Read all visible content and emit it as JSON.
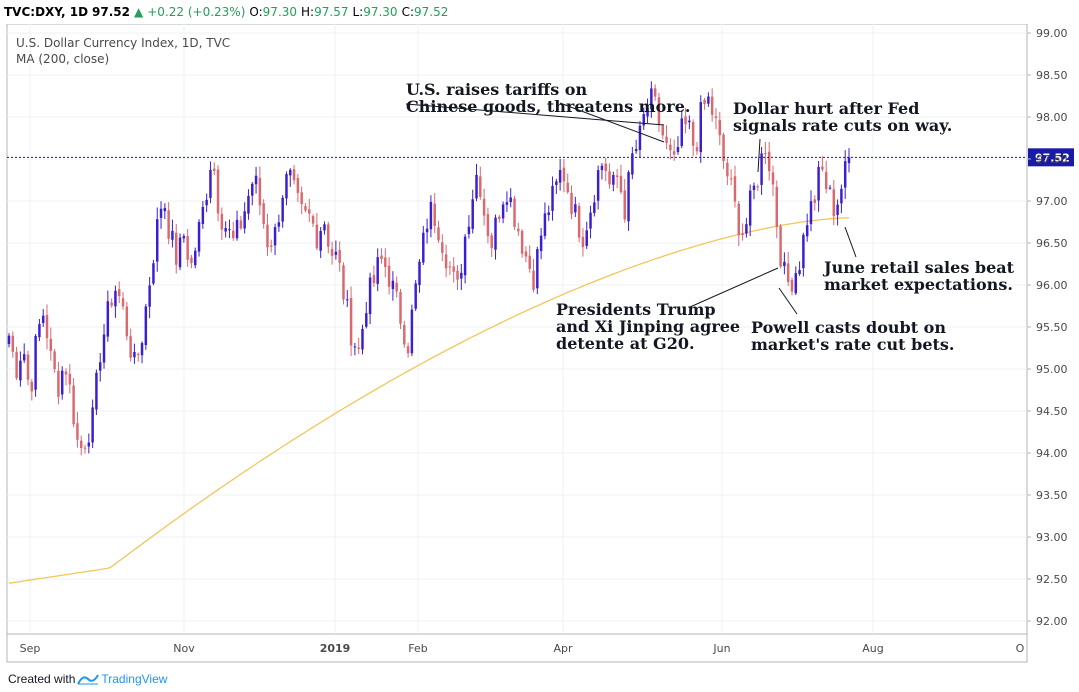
{
  "header": {
    "symbol": "TVC:DXY, 1D",
    "last": "97.52",
    "change": "+0.22 (+0.23%)",
    "open_label": "O:",
    "open": "97.30",
    "high_label": "H:",
    "high": "97.57",
    "low_label": "L:",
    "low": "97.30",
    "close_label": "C:",
    "close": "97.52"
  },
  "footer": {
    "created_with": "Created with",
    "brand": "TradingView"
  },
  "chart_data": {
    "type": "candlestick",
    "title": "U.S. Dollar Currency Index, 1D, TVC",
    "indicator": "MA (200, close)",
    "x_ticks": [
      "Sep",
      "Nov",
      "2019",
      "Feb",
      "Apr",
      "Jun",
      "Aug",
      "O"
    ],
    "y_ticks": [
      "99.00",
      "98.50",
      "98.00",
      "97.50",
      "97.00",
      "96.50",
      "96.00",
      "95.50",
      "95.00",
      "94.50",
      "94.00",
      "93.50",
      "93.00",
      "92.50",
      "92.00"
    ],
    "ylim": [
      91.9,
      99.1
    ],
    "last_price_label": "97.52",
    "last_price": 97.52,
    "colors": {
      "up": "#3a1fd1",
      "down": "#d9696f",
      "ma": "#f2c65a",
      "price_line": "#1a1aa8",
      "price_label_bg": "#1a1aa8"
    },
    "close_path": [
      95.4,
      95.0,
      95.3,
      94.7,
      95.4,
      95.7,
      95.1,
      94.8,
      95.1,
      94.6,
      94.0,
      94.2,
      94.4,
      95.2,
      95.6,
      96.0,
      95.8,
      95.4,
      95.0,
      95.4,
      96.0,
      96.6,
      97.1,
      96.6,
      96.3,
      96.6,
      96.2,
      96.6,
      97.0,
      97.6,
      96.9,
      96.7,
      96.5,
      96.7,
      97.0,
      97.3,
      96.9,
      96.5,
      96.6,
      97.1,
      97.3,
      97.0,
      96.8,
      96.8,
      96.6,
      96.8,
      96.4,
      96.3,
      95.8,
      95.4,
      95.2,
      95.8,
      96.0,
      96.3,
      96.2,
      95.9,
      95.6,
      95.3,
      95.9,
      96.4,
      96.9,
      96.8,
      96.5,
      96.2,
      95.9,
      96.5,
      97.0,
      97.4,
      96.8,
      96.5,
      96.9,
      97.2,
      96.9,
      96.6,
      96.3,
      96.1,
      96.6,
      96.9,
      97.1,
      97.4,
      97.1,
      96.8,
      96.6,
      96.9,
      97.3,
      97.5,
      97.1,
      97.3,
      96.9,
      97.5,
      97.7,
      98.1,
      98.2,
      97.9,
      97.6,
      97.4,
      97.8,
      97.9,
      97.6,
      98.1,
      98.2,
      97.9,
      97.5,
      97.2,
      96.8,
      96.6,
      97.0,
      97.3,
      97.7,
      97.3,
      96.5,
      96.0,
      96.1,
      96.3,
      96.8,
      97.0,
      97.4,
      97.1,
      96.9,
      97.2,
      97.5
    ],
    "ma_start": 92.45,
    "ma_end": 96.8,
    "annotations": [
      {
        "lines": [
          "U.S. raises tariffs on",
          "Chinese goods, threatens more."
        ]
      },
      {
        "lines": [
          "Dollar hurt after Fed",
          "signals rate cuts on way."
        ]
      },
      {
        "lines": [
          "June retail sales beat",
          "market expectations."
        ]
      },
      {
        "lines": [
          "Presidents Trump",
          "and Xi Jinping agree",
          "detente at G20."
        ]
      },
      {
        "lines": [
          "Powell casts doubt on",
          "market's rate cut bets."
        ]
      }
    ]
  }
}
